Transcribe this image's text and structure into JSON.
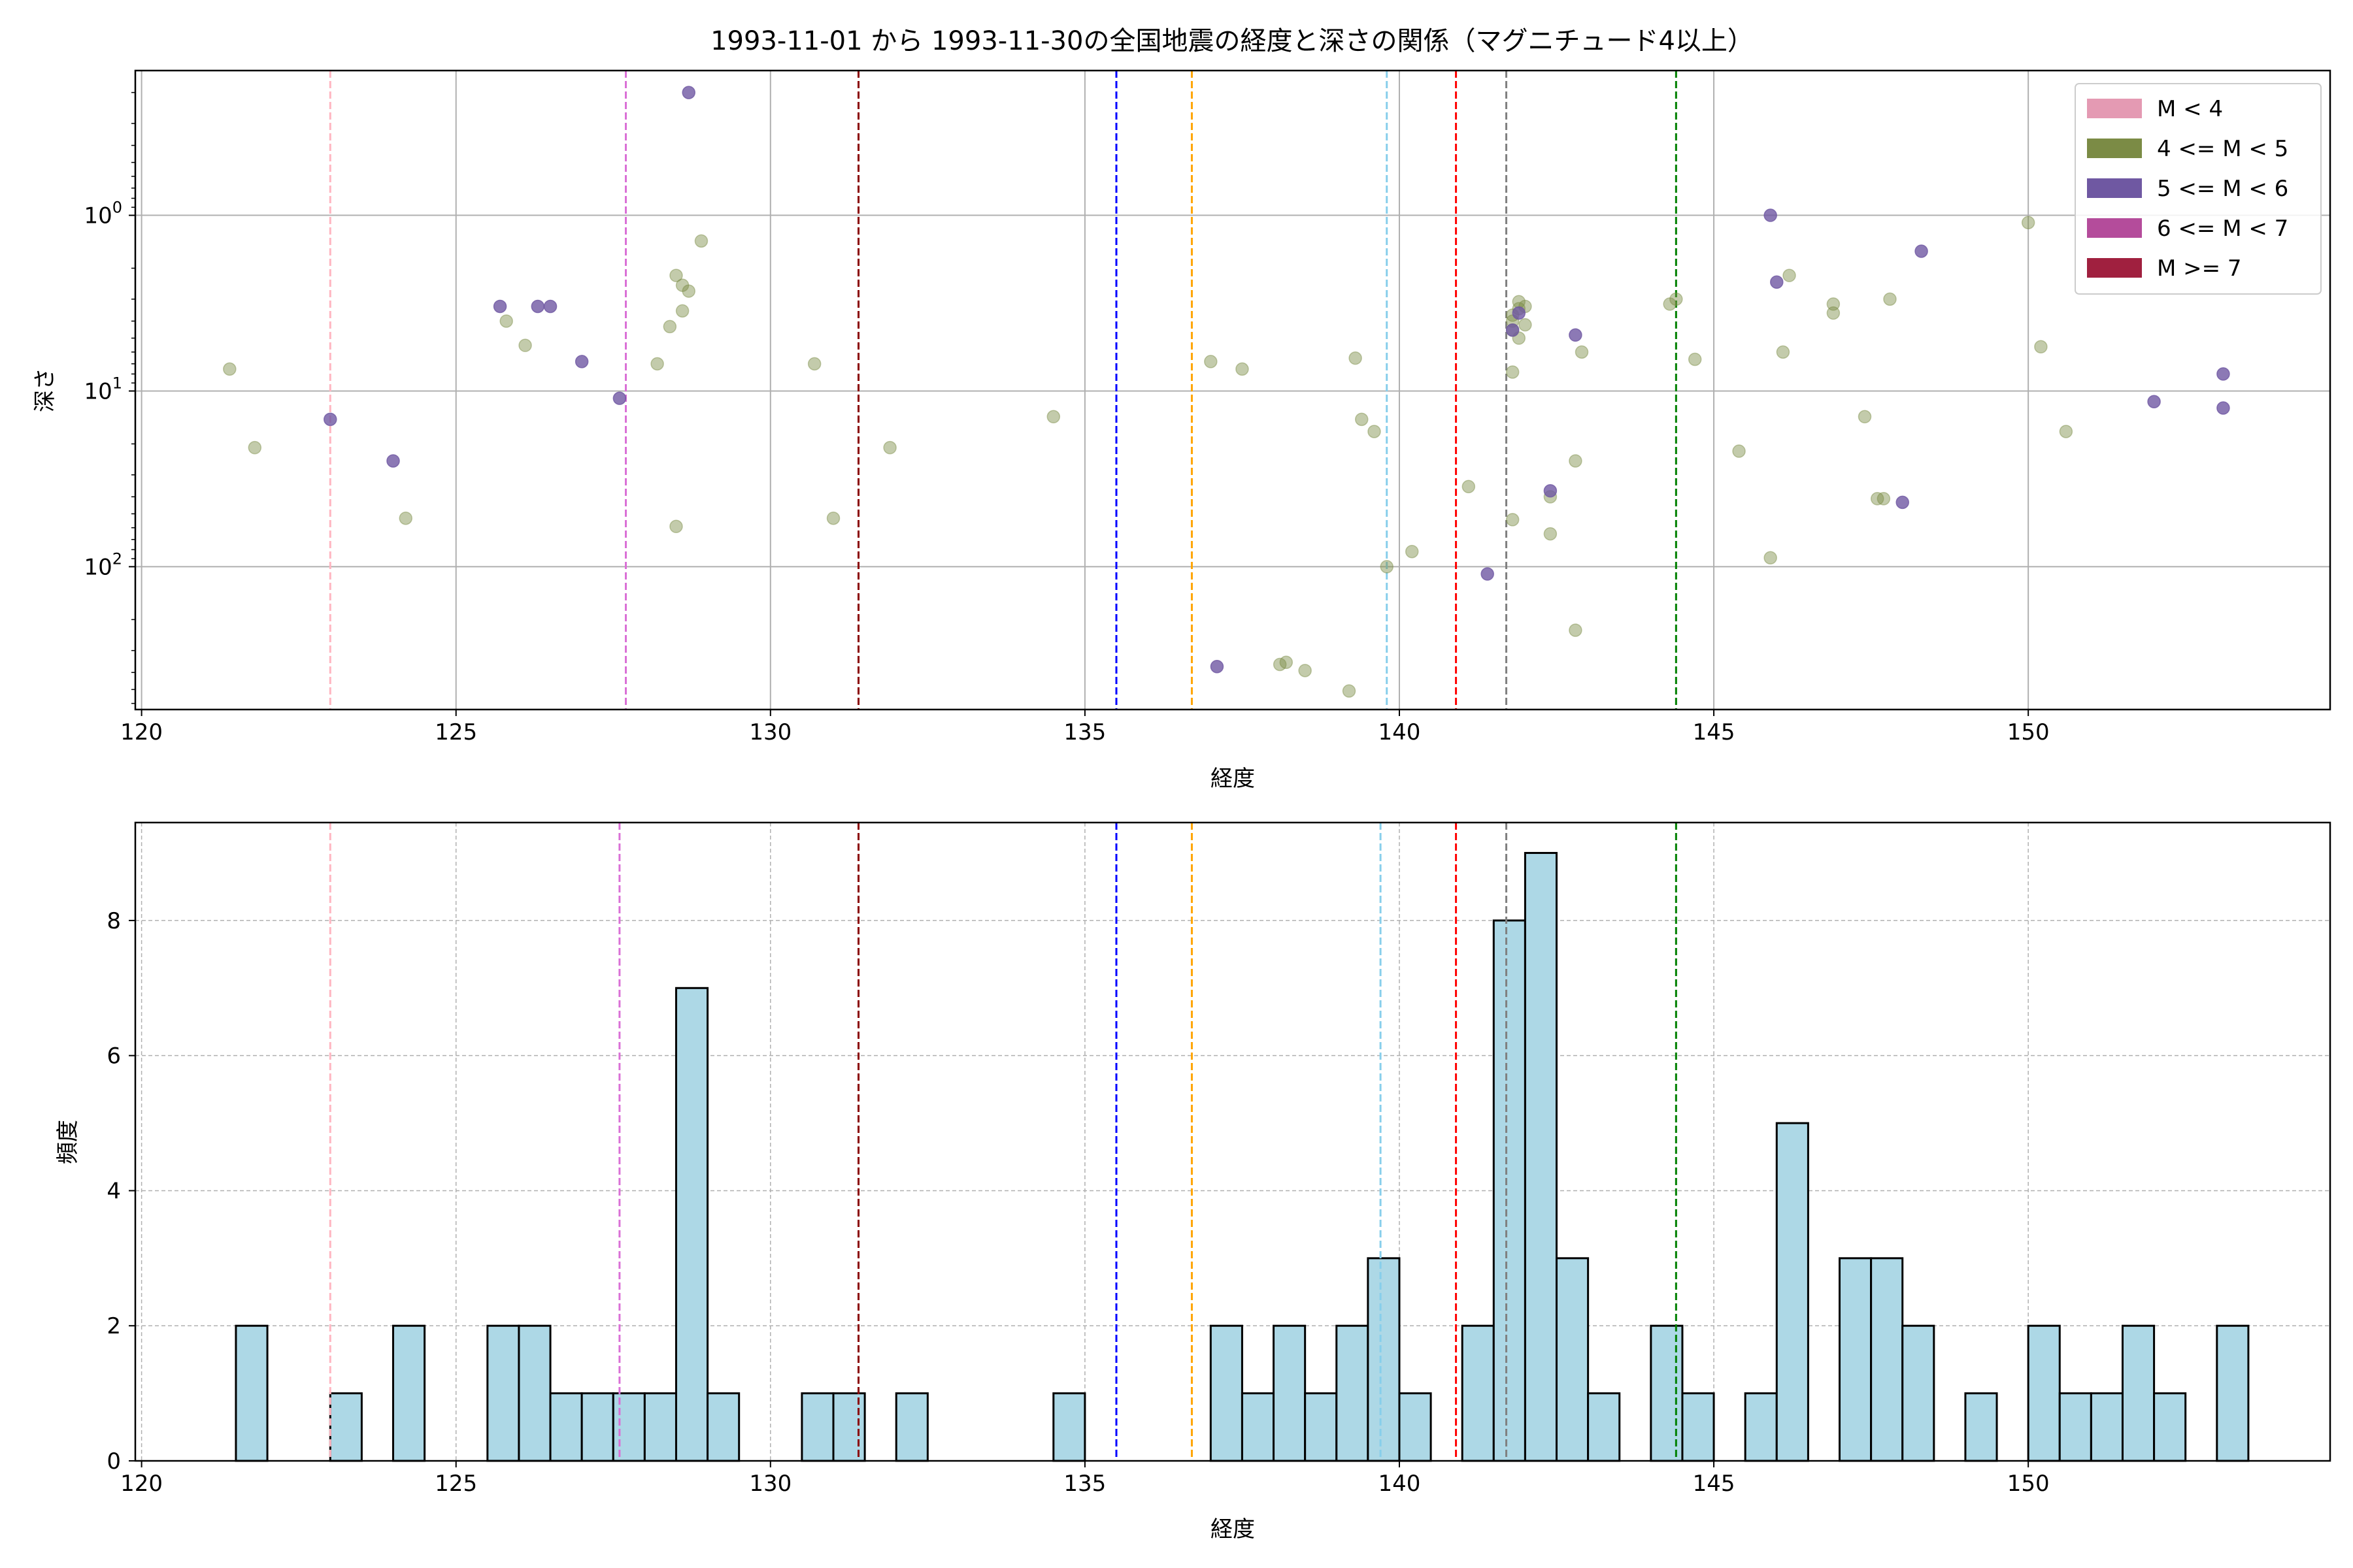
{
  "chart_data": [
    {
      "type": "scatter",
      "title": "1993-11-01 から 1993-11-30の全国地震の経度と深さの関係（マグニチュード4以上）",
      "xlabel": "経度",
      "ylabel": "深さ",
      "x_ticks": [
        "120",
        "125",
        "130",
        "135",
        "140",
        "145",
        "150"
      ],
      "y_ticks": [
        "10^0",
        "10^1",
        "10^2"
      ],
      "xlim": [
        119.9,
        154.8
      ],
      "y_scale": "log (inverted)",
      "ylim": [
        0.15,
        650
      ],
      "grid": true,
      "legend_placement": "top-right",
      "legend": [
        {
          "label": "M < 4",
          "color": "#e49ab3"
        },
        {
          "label": "4 <= M < 5",
          "color": "#7b8b45"
        },
        {
          "label": "5 <= M < 6",
          "color": "#6f58a2"
        },
        {
          "label": "6 <= M < 7",
          "color": "#b44c9b"
        },
        {
          "label": "M >= 7",
          "color": "#a0203f"
        }
      ],
      "vlines": [
        {
          "x": 123.0,
          "color": "#ffb6c1"
        },
        {
          "x": 127.7,
          "color": "#da70d6"
        },
        {
          "x": 131.4,
          "color": "#8b0000"
        },
        {
          "x": 135.5,
          "color": "#0000ff"
        },
        {
          "x": 136.7,
          "color": "#ffa500"
        },
        {
          "x": 139.8,
          "color": "#87ceeb"
        },
        {
          "x": 140.9,
          "color": "#ff0000"
        },
        {
          "x": 141.7,
          "color": "#808080"
        },
        {
          "x": 144.4,
          "color": "#008000"
        }
      ],
      "series": [
        {
          "name": "4 <= M < 5",
          "color": "#7b8b45",
          "points": [
            [
              121.4,
              7.5
            ],
            [
              121.8,
              21
            ],
            [
              124.2,
              53
            ],
            [
              125.8,
              4
            ],
            [
              126.1,
              5.5
            ],
            [
              128.2,
              7
            ],
            [
              128.4,
              4.3
            ],
            [
              128.5,
              2.2
            ],
            [
              128.6,
              2.5
            ],
            [
              128.7,
              2.7
            ],
            [
              128.6,
              3.5
            ],
            [
              128.9,
              1.4
            ],
            [
              128.5,
              59
            ],
            [
              130.7,
              7
            ],
            [
              131.0,
              53
            ],
            [
              131.9,
              21
            ],
            [
              134.5,
              14
            ],
            [
              137.0,
              6.8
            ],
            [
              137.5,
              7.5
            ],
            [
              138.1,
              360
            ],
            [
              138.2,
              350
            ],
            [
              138.5,
              390
            ],
            [
              139.2,
              510
            ],
            [
              139.3,
              6.5
            ],
            [
              139.4,
              14.5
            ],
            [
              139.6,
              17
            ],
            [
              139.8,
              100
            ],
            [
              140.2,
              82
            ],
            [
              141.1,
              35
            ],
            [
              141.8,
              4.5
            ],
            [
              141.8,
              4.0
            ],
            [
              141.9,
              3.1
            ],
            [
              141.9,
              3.4
            ],
            [
              141.8,
              3.7
            ],
            [
              142.0,
              3.3
            ],
            [
              141.9,
              5.0
            ],
            [
              141.8,
              7.8
            ],
            [
              142.0,
              4.2
            ],
            [
              141.8,
              54
            ],
            [
              142.4,
              40
            ],
            [
              142.4,
              65
            ],
            [
              142.8,
              25
            ],
            [
              142.9,
              6
            ],
            [
              142.8,
              230
            ],
            [
              144.3,
              3.2
            ],
            [
              144.4,
              3.0
            ],
            [
              144.7,
              6.6
            ],
            [
              145.4,
              22
            ],
            [
              145.9,
              89
            ],
            [
              146.1,
              6
            ],
            [
              146.2,
              2.2
            ],
            [
              146.9,
              3.2
            ],
            [
              146.9,
              3.6
            ],
            [
              147.4,
              14
            ],
            [
              147.6,
              41
            ],
            [
              147.7,
              41
            ],
            [
              147.8,
              3
            ],
            [
              150.0,
              1.1
            ],
            [
              150.2,
              5.6
            ],
            [
              150.6,
              17
            ]
          ]
        },
        {
          "name": "5 <= M < 6",
          "color": "#6f58a2",
          "points": [
            [
              123.0,
              14.5
            ],
            [
              124.0,
              25
            ],
            [
              125.7,
              3.3
            ],
            [
              126.3,
              3.3
            ],
            [
              126.5,
              3.3
            ],
            [
              127.0,
              6.8
            ],
            [
              127.6,
              11
            ],
            [
              128.7,
              0.2
            ],
            [
              137.1,
              370
            ],
            [
              141.4,
              110
            ],
            [
              141.8,
              4.5
            ],
            [
              141.9,
              3.6
            ],
            [
              142.4,
              37
            ],
            [
              142.8,
              4.8
            ],
            [
              145.9,
              1.0
            ],
            [
              146.0,
              2.4
            ],
            [
              148.0,
              43
            ],
            [
              148.3,
              1.6
            ],
            [
              152.0,
              11.5
            ],
            [
              153.1,
              12.5
            ],
            [
              153.1,
              8
            ]
          ]
        }
      ]
    },
    {
      "type": "bar",
      "title": "",
      "xlabel": "経度",
      "ylabel": "頻度",
      "x_ticks": [
        "120",
        "125",
        "130",
        "135",
        "140",
        "145",
        "150"
      ],
      "y_ticks": [
        "0",
        "2",
        "4",
        "6",
        "8"
      ],
      "xlim": [
        119.9,
        154.8
      ],
      "ylim": [
        0,
        9.45
      ],
      "grid": true,
      "bar_color": "#add8e6",
      "bin_width": 0.5,
      "bins": [
        [
          121.5,
          2
        ],
        [
          123.0,
          1
        ],
        [
          124.0,
          2
        ],
        [
          125.5,
          2
        ],
        [
          126.0,
          2
        ],
        [
          126.5,
          1
        ],
        [
          127.0,
          1
        ],
        [
          127.5,
          1
        ],
        [
          128.0,
          1
        ],
        [
          128.5,
          7
        ],
        [
          129.0,
          1
        ],
        [
          130.5,
          1
        ],
        [
          131.0,
          1
        ],
        [
          132.0,
          1
        ],
        [
          134.5,
          1
        ],
        [
          137.0,
          2
        ],
        [
          137.5,
          1
        ],
        [
          138.0,
          2
        ],
        [
          138.5,
          1
        ],
        [
          139.0,
          2
        ],
        [
          139.5,
          3
        ],
        [
          140.0,
          1
        ],
        [
          141.0,
          2
        ],
        [
          141.5,
          8
        ],
        [
          142.0,
          9
        ],
        [
          142.5,
          3
        ],
        [
          143.0,
          1
        ],
        [
          144.0,
          2
        ],
        [
          144.5,
          1
        ],
        [
          145.5,
          1
        ],
        [
          146.0,
          5
        ],
        [
          147.0,
          3
        ],
        [
          147.5,
          3
        ],
        [
          148.0,
          2
        ],
        [
          149.0,
          1
        ],
        [
          150.0,
          2
        ],
        [
          150.5,
          1
        ],
        [
          151.0,
          1
        ],
        [
          151.5,
          2
        ],
        [
          152.0,
          1
        ],
        [
          153.0,
          2
        ]
      ],
      "vlines": [
        {
          "x": 123.0,
          "color": "#ffb6c1"
        },
        {
          "x": 127.6,
          "color": "#da70d6"
        },
        {
          "x": 131.4,
          "color": "#8b0000"
        },
        {
          "x": 135.5,
          "color": "#0000ff"
        },
        {
          "x": 136.7,
          "color": "#ffa500"
        },
        {
          "x": 139.7,
          "color": "#87ceeb"
        },
        {
          "x": 140.9,
          "color": "#ff0000"
        },
        {
          "x": 141.7,
          "color": "#808080"
        },
        {
          "x": 144.4,
          "color": "#008000"
        }
      ]
    }
  ]
}
